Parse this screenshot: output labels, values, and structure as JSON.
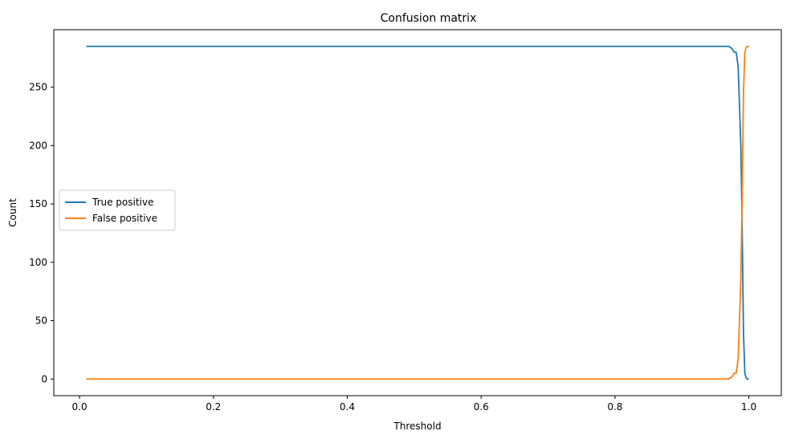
{
  "chart_data": {
    "type": "line",
    "title": "Confusion matrix",
    "xlabel": "Threshold",
    "ylabel": "Count",
    "xlim": [
      -0.0385,
      1.0485
    ],
    "ylim": [
      -14.25,
      299.25
    ],
    "x_ticks": [
      0.0,
      0.2,
      0.4,
      0.6,
      0.8,
      1.0
    ],
    "x_tick_labels": [
      "0.0",
      "0.2",
      "0.4",
      "0.6",
      "0.8",
      "1.0"
    ],
    "y_ticks": [
      0,
      50,
      100,
      150,
      200,
      250
    ],
    "y_tick_labels": [
      "0",
      "50",
      "100",
      "150",
      "200",
      "250"
    ],
    "grid": false,
    "legend_position": "center-left",
    "series": [
      {
        "name": "True positive",
        "color": "#1f77b4",
        "x": [
          0.01,
          0.2,
          0.4,
          0.6,
          0.8,
          0.95,
          0.97,
          0.975,
          0.978,
          0.981,
          0.984,
          0.986,
          0.988,
          0.99,
          0.992,
          0.994,
          0.996,
          0.998,
          1.0
        ],
        "y": [
          285,
          285,
          285,
          285,
          285,
          285,
          285,
          283,
          280,
          280,
          268,
          235,
          200,
          130,
          40,
          5,
          1,
          0,
          0
        ]
      },
      {
        "name": "False positive",
        "color": "#ff7f0e",
        "x": [
          0.01,
          0.2,
          0.4,
          0.6,
          0.8,
          0.95,
          0.97,
          0.975,
          0.978,
          0.981,
          0.984,
          0.986,
          0.988,
          0.99,
          0.992,
          0.994,
          0.996,
          0.998,
          1.0
        ],
        "y": [
          0,
          0,
          0,
          0,
          0,
          0,
          0,
          2,
          5,
          5,
          17,
          50,
          85,
          155,
          245,
          280,
          284,
          285,
          285
        ]
      }
    ]
  }
}
